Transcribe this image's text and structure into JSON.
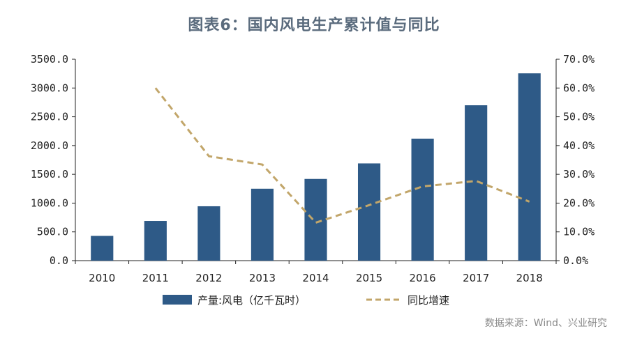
{
  "title": "图表6：国内风电生产累计值与同比",
  "source": "数据来源：Wind、兴业研究",
  "colors": {
    "bar": "#2e5a87",
    "line": "#c2a66a",
    "axis": "#222222"
  },
  "chart_data": {
    "type": "bar+line",
    "categories": [
      "2010",
      "2011",
      "2012",
      "2013",
      "2014",
      "2015",
      "2016",
      "2017",
      "2018"
    ],
    "series": [
      {
        "name": "产量:风电（亿千瓦时）",
        "type": "bar",
        "axis": "left",
        "values": [
          430,
          690,
          945,
          1250,
          1420,
          1690,
          2120,
          2700,
          3255
        ]
      },
      {
        "name": "同比增速",
        "type": "line",
        "style": "dashed",
        "axis": "right",
        "values": [
          null,
          60.0,
          36.3,
          33.4,
          13.2,
          19.3,
          25.8,
          27.7,
          20.5
        ]
      }
    ],
    "y_left": {
      "min": 0,
      "max": 3500,
      "step": 500,
      "ticks": [
        "0.0",
        "500.0",
        "1000.0",
        "1500.0",
        "2000.0",
        "2500.0",
        "3000.0",
        "3500.0"
      ]
    },
    "y_right": {
      "min": 0,
      "max": 70,
      "step": 10,
      "ticks": [
        "0.0%",
        "10.0%",
        "20.0%",
        "30.0%",
        "40.0%",
        "50.0%",
        "60.0%",
        "70.0%"
      ]
    },
    "grid": false,
    "legend": "bottom"
  }
}
